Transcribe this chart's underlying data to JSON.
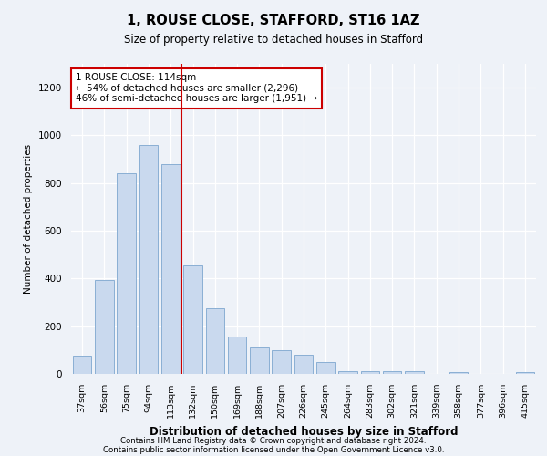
{
  "title": "1, ROUSE CLOSE, STAFFORD, ST16 1AZ",
  "subtitle": "Size of property relative to detached houses in Stafford",
  "xlabel": "Distribution of detached houses by size in Stafford",
  "ylabel": "Number of detached properties",
  "categories": [
    "37sqm",
    "56sqm",
    "75sqm",
    "94sqm",
    "113sqm",
    "132sqm",
    "150sqm",
    "169sqm",
    "188sqm",
    "207sqm",
    "226sqm",
    "245sqm",
    "264sqm",
    "283sqm",
    "302sqm",
    "321sqm",
    "339sqm",
    "358sqm",
    "377sqm",
    "396sqm",
    "415sqm"
  ],
  "values": [
    75,
    395,
    840,
    960,
    880,
    455,
    275,
    155,
    110,
    100,
    80,
    50,
    10,
    10,
    10,
    10,
    0,
    8,
    0,
    0,
    8
  ],
  "bar_color": "#c9d9ee",
  "bar_edge_color": "#8aafd4",
  "vline_color": "#cc0000",
  "vline_x": 4.5,
  "annotation_text": "1 ROUSE CLOSE: 114sqm\n← 54% of detached houses are smaller (2,296)\n46% of semi-detached houses are larger (1,951) →",
  "annotation_box_color": "#ffffff",
  "annotation_box_edge_color": "#cc0000",
  "ylim": [
    0,
    1300
  ],
  "yticks": [
    0,
    200,
    400,
    600,
    800,
    1000,
    1200
  ],
  "footnote1": "Contains HM Land Registry data © Crown copyright and database right 2024.",
  "footnote2": "Contains public sector information licensed under the Open Government Licence v3.0.",
  "bg_color": "#eef2f8"
}
